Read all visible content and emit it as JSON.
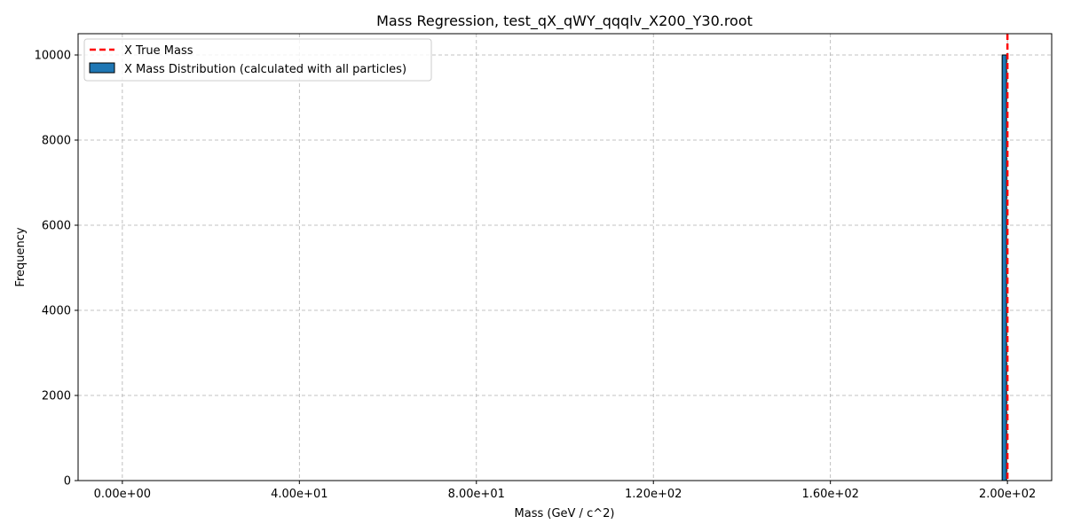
{
  "chart_data": {
    "type": "bar",
    "title": "Mass Regression, test_qX_qWY_qqqlv_X200_Y30.root",
    "xlabel": "Mass (GeV / c^2)",
    "ylabel": "Frequency",
    "xlim": [
      -10,
      210
    ],
    "ylim": [
      0,
      10500
    ],
    "x_ticks": [
      0,
      40,
      80,
      120,
      160,
      200
    ],
    "x_tick_labels": [
      "0.00e+00",
      "4.00e+01",
      "8.00e+01",
      "1.20e+02",
      "1.60e+02",
      "2.00e+02"
    ],
    "y_ticks": [
      0,
      2000,
      4000,
      6000,
      8000,
      10000
    ],
    "y_tick_labels": [
      "0",
      "2000",
      "4000",
      "6000",
      "8000",
      "10000"
    ],
    "grid": true,
    "legend_position": "top-left",
    "series": [
      {
        "name": "X Mass Distribution (calculated with all particles)",
        "kind": "histogram",
        "color": "#1f77b4",
        "edge_color": "#000000",
        "bins": [
          {
            "x0": 198.8,
            "x1": 199.8,
            "value": 10000
          }
        ]
      },
      {
        "name": "X True Mass",
        "kind": "vline",
        "color": "#ff0000",
        "x": 200
      }
    ]
  }
}
